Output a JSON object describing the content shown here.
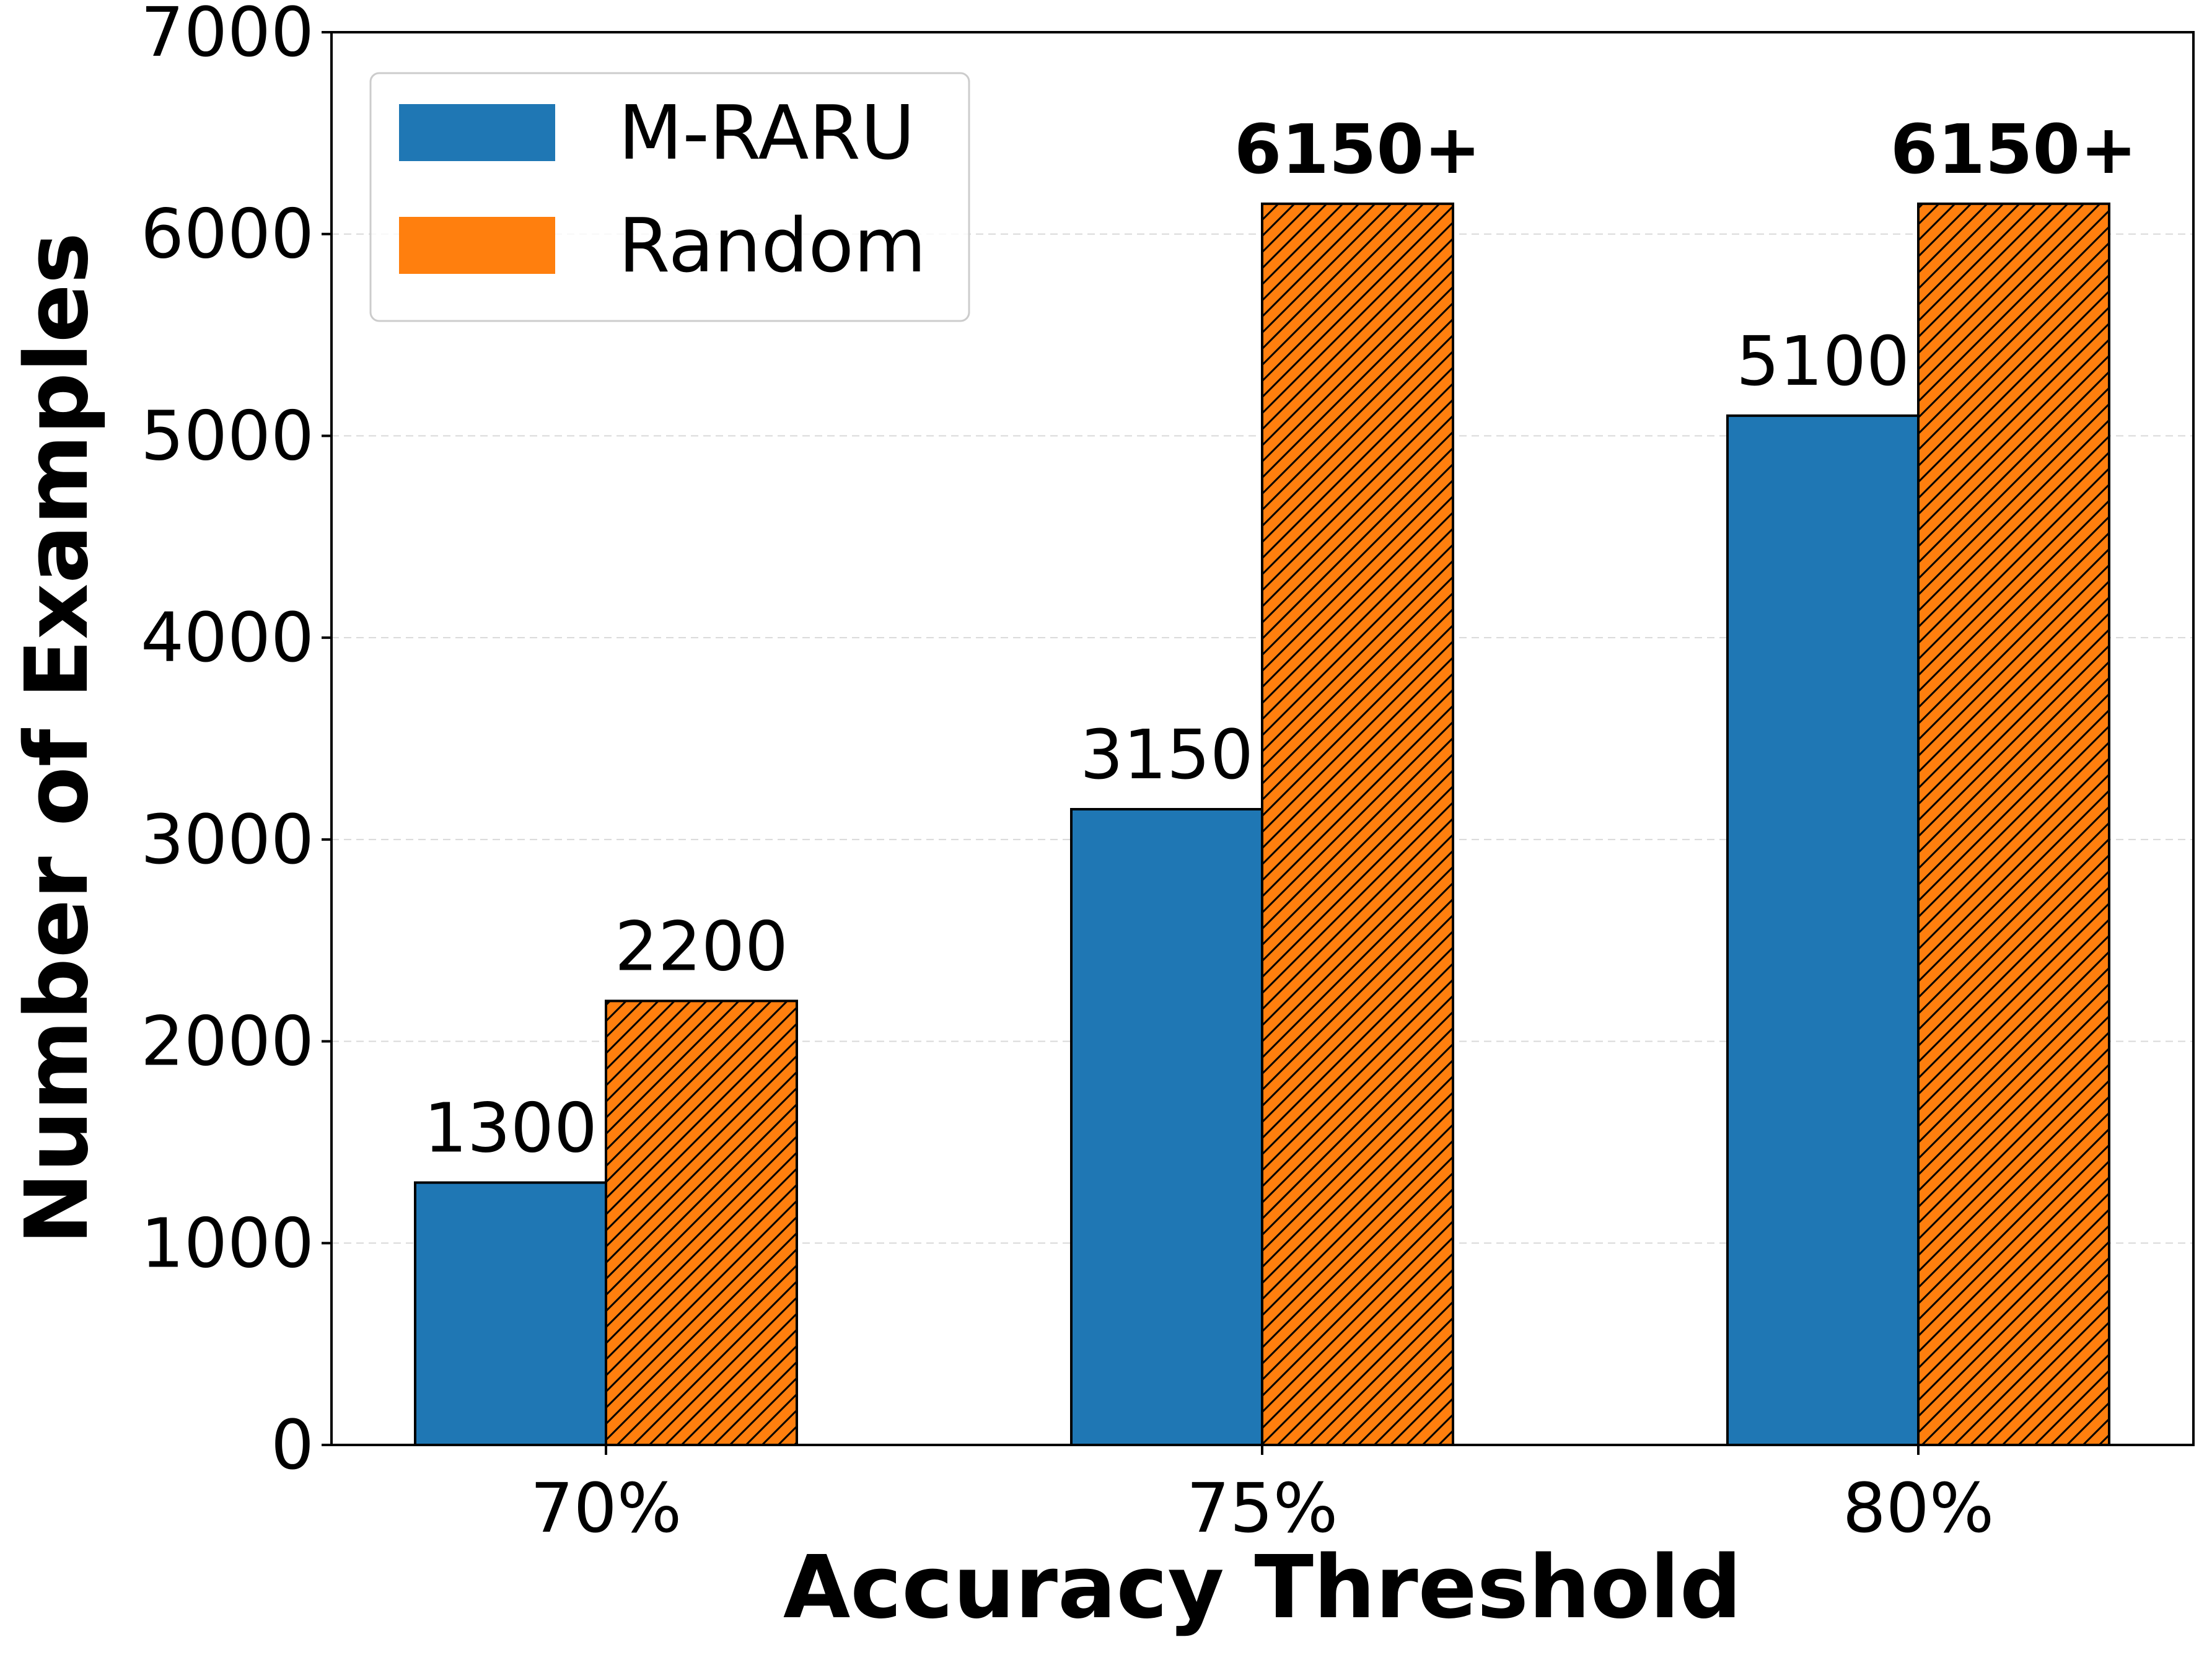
{
  "chart_data": {
    "type": "bar",
    "title": "",
    "xlabel": "Accuracy Threshold",
    "ylabel": "Number of Examples",
    "categories": [
      "70%",
      "75%",
      "80%"
    ],
    "ylim": [
      0,
      7000
    ],
    "yticks": [
      0,
      1000,
      2000,
      3000,
      4000,
      5000,
      6000,
      7000
    ],
    "grid": "horizontal-dashed",
    "legend_position": "top-left",
    "series": [
      {
        "name": "M-RARU",
        "color": "#1f77b4",
        "hatch": "none",
        "values": [
          1300,
          3150,
          5100
        ],
        "labels": [
          "1300",
          "3150",
          "5100"
        ],
        "label_bold": [
          false,
          false,
          false
        ]
      },
      {
        "name": "Random",
        "color": "#ff7f0e",
        "hatch": "diagonal",
        "values": [
          2200,
          6150,
          6150
        ],
        "labels": [
          "2200",
          "6150+",
          "6150+"
        ],
        "label_bold": [
          false,
          true,
          true
        ]
      }
    ]
  }
}
